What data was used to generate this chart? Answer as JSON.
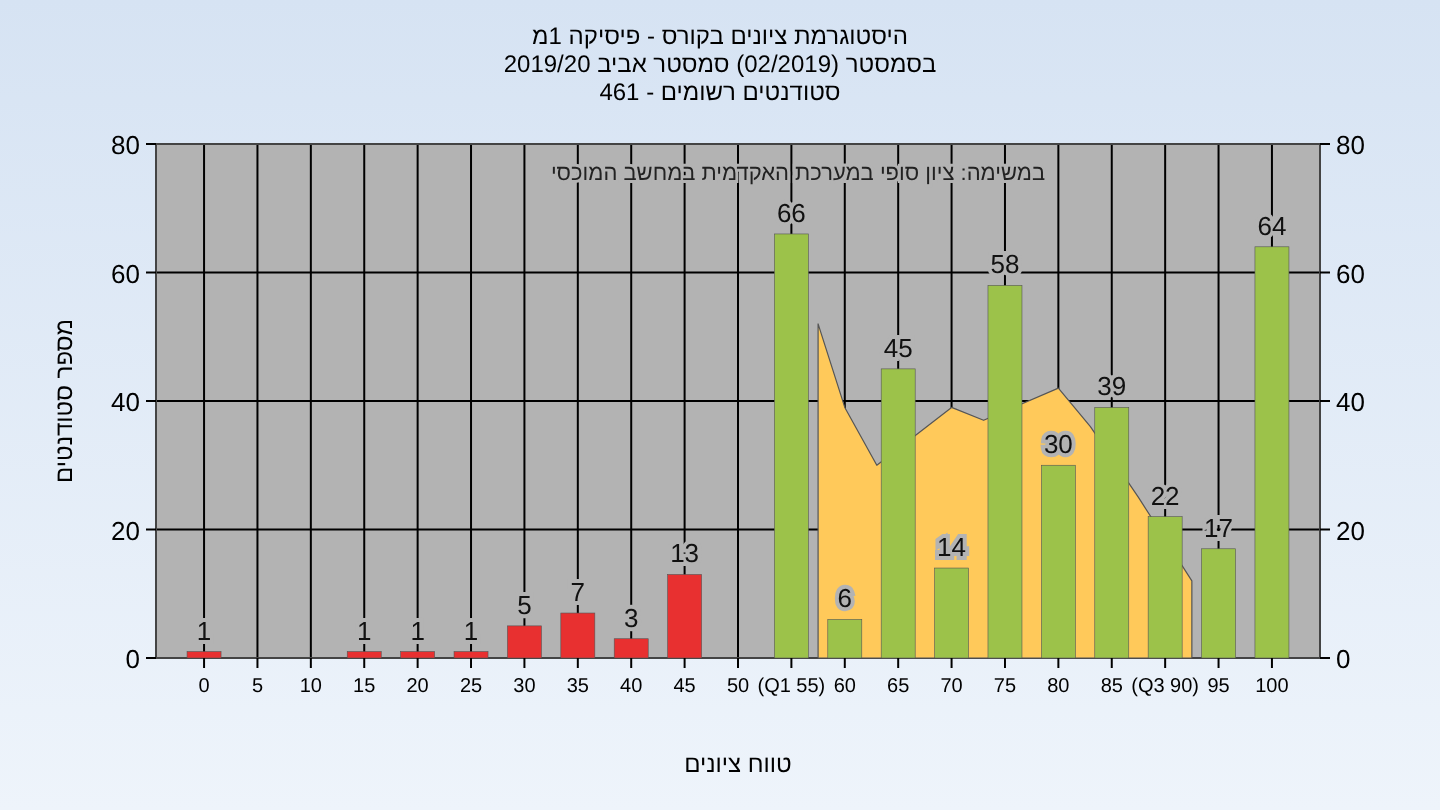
{
  "chart_data": {
    "type": "bar",
    "title": "היסטוגרמת ציונים בקורס - פיסיקה 1מ",
    "subtitle": "בסמסטר  (02/2019)  סמסטר אביב 2019/20\nסטודנטים רשומים - 461",
    "xlabel": "טווח ציונים",
    "ylabel": "מספר סטודנטים",
    "annotations": [
      "במשימה: ציון סופי במערכת האקדמית במחשב המוכסי"
    ],
    "x": [
      0,
      15,
      20,
      25,
      30,
      35,
      40,
      45,
      55,
      60,
      65,
      70,
      75,
      80,
      85,
      90,
      95,
      100
    ],
    "xticks": [
      0,
      5,
      10,
      15,
      20,
      25,
      30,
      35,
      40,
      45,
      50,
      {
        "value": 55,
        "label": "(Q1 55)"
      },
      60,
      65,
      70,
      75,
      80,
      85,
      {
        "value": 90,
        "label": "(Q3 90)"
      },
      95,
      100
    ],
    "series": [
      {
        "type": "area",
        "color": "#ffc95a",
        "x": [
          57.5,
          60,
          63,
          70,
          73,
          80,
          83,
          87.5,
          92.5
        ],
        "values": [
          52,
          39,
          30,
          39,
          37,
          42,
          36,
          25,
          12
        ]
      },
      {
        "colors": [
          "#e83030",
          "#e83030",
          "#e83030",
          "#e83030",
          "#e83030",
          "#e83030",
          "#e83030",
          "#e83030",
          "#9cc24a",
          "#9cc24a",
          "#9cc24a",
          "#9cc24a",
          "#9cc24a",
          "#9cc24a",
          "#9cc24a",
          "#9cc24a",
          "#9cc24a",
          "#9cc24a"
        ],
        "values": [
          1,
          1,
          1,
          1,
          5,
          7,
          3,
          13,
          66,
          6,
          45,
          14,
          58,
          30,
          39,
          22,
          17,
          64
        ],
        "value_labels": [
          "1",
          "1",
          "1",
          "1",
          "5",
          "7",
          "3",
          "13",
          "66",
          "6",
          "45",
          "14",
          "58",
          "30",
          "39",
          "22",
          "17",
          "64"
        ]
      }
    ],
    "xlim": [
      -4.5,
      104.5
    ],
    "ylim": [
      0,
      80
    ],
    "yticks": [
      0,
      20,
      40,
      60,
      80
    ],
    "y2lim": [
      0,
      80
    ],
    "y2ticks": [
      0,
      20,
      40,
      60,
      80
    ],
    "grid": true
  }
}
